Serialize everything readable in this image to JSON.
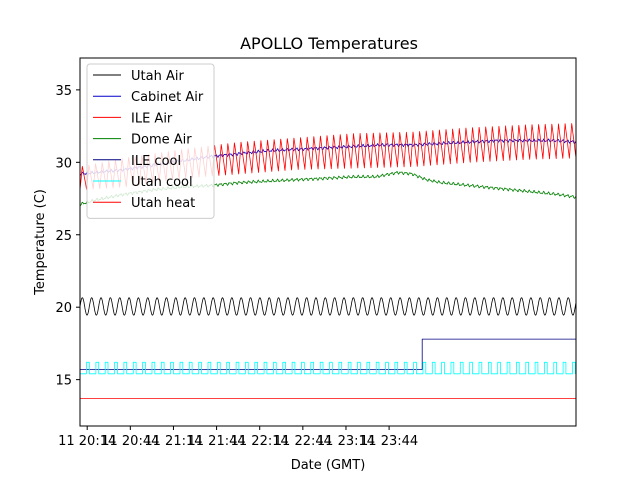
{
  "chart_data": {
    "type": "line",
    "title": "APOLLO Temperatures",
    "xlabel": "Date (GMT)",
    "ylabel": "Temperature (C)",
    "x_unit": "minutes since 11 20:00 GMT",
    "xlim": [
      9,
      354
    ],
    "ylim": [
      11.8,
      37.2
    ],
    "grid": false,
    "legend_position": "top-left",
    "x_ticks": [
      {
        "value": 14,
        "label": "11 20:14"
      },
      {
        "value": 44,
        "label": "11 20:44"
      },
      {
        "value": 74,
        "label": "11 21:14"
      },
      {
        "value": 104,
        "label": "11 21:44"
      },
      {
        "value": 134,
        "label": "11 22:14"
      },
      {
        "value": 164,
        "label": "11 22:44"
      },
      {
        "value": 194,
        "label": "11 23:14"
      },
      {
        "value": 224,
        "label": "11 23:44"
      }
    ],
    "y_ticks": [
      {
        "value": 15,
        "label": "15"
      },
      {
        "value": 20,
        "label": "20"
      },
      {
        "value": 25,
        "label": "25"
      },
      {
        "value": 30,
        "label": "30"
      },
      {
        "value": 35,
        "label": "35"
      }
    ],
    "series": [
      {
        "name": "Utah Air",
        "color": "#000000",
        "kind": "oscillate",
        "base": 20.05,
        "amp": 0.6,
        "period": 6.5
      },
      {
        "name": "Cabinet Air",
        "color": "#0000cc",
        "kind": "smooth",
        "x": [
          9,
          20,
          40,
          60,
          80,
          100,
          120,
          140,
          160,
          180,
          200,
          220,
          240,
          260,
          280,
          300,
          320,
          340,
          354
        ],
        "values": [
          29.2,
          29.3,
          29.5,
          29.8,
          30.1,
          30.4,
          30.6,
          30.8,
          30.9,
          31.0,
          31.1,
          31.2,
          31.2,
          31.3,
          31.4,
          31.5,
          31.5,
          31.5,
          31.4
        ]
      },
      {
        "name": "ILE Air",
        "color": "#ff0000",
        "kind": "sawtooth",
        "x": [
          9,
          40,
          80,
          120,
          160,
          200,
          240,
          280,
          320,
          354
        ],
        "center": [
          28.9,
          29.3,
          29.9,
          30.3,
          30.6,
          30.8,
          30.9,
          31.2,
          31.4,
          31.5
        ],
        "amp": [
          0.8,
          1.0,
          1.0,
          1.1,
          1.1,
          1.2,
          1.2,
          1.2,
          1.2,
          1.2
        ],
        "period": 4.6
      },
      {
        "name": "Dome Air",
        "color": "#008000",
        "kind": "smooth",
        "x": [
          9,
          20,
          40,
          60,
          80,
          100,
          120,
          140,
          160,
          180,
          200,
          215,
          230,
          240,
          250,
          260,
          280,
          300,
          320,
          340,
          354
        ],
        "values": [
          27.1,
          27.4,
          27.8,
          28.1,
          28.3,
          28.4,
          28.6,
          28.7,
          28.8,
          28.9,
          29.0,
          29.0,
          29.3,
          29.2,
          28.8,
          28.6,
          28.4,
          28.2,
          28.0,
          27.8,
          27.6
        ]
      },
      {
        "name": "ILE cool",
        "color": "#000080",
        "kind": "step",
        "x": [
          9,
          247,
          247,
          354
        ],
        "values": [
          15.7,
          15.7,
          17.8,
          17.8
        ]
      },
      {
        "name": "Utah cool",
        "color": "#00ffff",
        "kind": "pulse",
        "low": 15.4,
        "high": 16.2,
        "period": 6.5
      },
      {
        "name": "Utah heat",
        "color": "#ff0000",
        "kind": "constant",
        "value": 13.7
      }
    ]
  }
}
